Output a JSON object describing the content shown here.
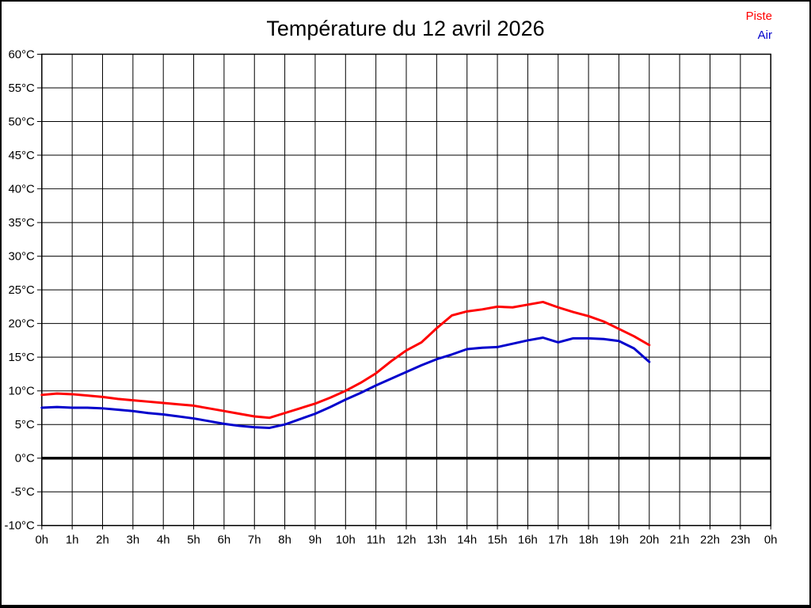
{
  "title": "Température du 12 avril 2026",
  "legend": {
    "items": [
      {
        "label": "Piste",
        "color": "#ff0000"
      },
      {
        "label": "Air",
        "color": "#0000cc"
      }
    ]
  },
  "colors": {
    "background": "#ffffff",
    "grid": "#000000",
    "axis": "#000000",
    "zero_line": "#000000",
    "piste_line": "#ff0000",
    "air_line": "#0000cc"
  },
  "chart_data": {
    "type": "line",
    "title": "Température du 12 avril 2026",
    "xlabel": "",
    "ylabel": "",
    "xlim": [
      0,
      24
    ],
    "ylim": [
      -10,
      60
    ],
    "grid": true,
    "legend_position": "top-right",
    "zero_line_bold": true,
    "x_tick_values": [
      0,
      1,
      2,
      3,
      4,
      5,
      6,
      7,
      8,
      9,
      10,
      11,
      12,
      13,
      14,
      15,
      16,
      17,
      18,
      19,
      20,
      21,
      22,
      23,
      24
    ],
    "x_tick_labels": [
      "0h",
      "1h",
      "2h",
      "3h",
      "4h",
      "5h",
      "6h",
      "7h",
      "8h",
      "9h",
      "10h",
      "11h",
      "12h",
      "13h",
      "14h",
      "15h",
      "16h",
      "17h",
      "18h",
      "19h",
      "20h",
      "21h",
      "22h",
      "23h",
      "0h"
    ],
    "y_tick_values": [
      60,
      55,
      50,
      45,
      40,
      35,
      30,
      25,
      20,
      15,
      10,
      5,
      0,
      -5,
      -10
    ],
    "y_tick_labels": [
      "60°C",
      "55°C",
      "50°C",
      "45°C",
      "40°C",
      "35°C",
      "30°C",
      "25°C",
      "20°C",
      "15°C",
      "10°C",
      "5°C",
      "0°C",
      "-5°C",
      "-10°C"
    ],
    "x": [
      0,
      0.5,
      1,
      1.5,
      2,
      2.5,
      3,
      3.5,
      4,
      4.5,
      5,
      5.5,
      6,
      6.5,
      7,
      7.5,
      8,
      8.5,
      9,
      9.5,
      10,
      10.5,
      11,
      11.5,
      12,
      12.5,
      13,
      13.5,
      14,
      14.5,
      15,
      15.5,
      16,
      16.5,
      17,
      17.5,
      18,
      18.5,
      19,
      19.5,
      20
    ],
    "series": [
      {
        "name": "Piste",
        "color": "#ff0000",
        "values": [
          9.4,
          9.6,
          9.5,
          9.3,
          9.1,
          8.8,
          8.6,
          8.4,
          8.2,
          8.0,
          7.8,
          7.4,
          7.0,
          6.6,
          6.2,
          6.0,
          6.7,
          7.4,
          8.1,
          9.0,
          10.0,
          11.2,
          12.6,
          14.4,
          16.0,
          17.2,
          19.3,
          21.2,
          21.8,
          22.1,
          22.5,
          22.4,
          22.8,
          23.2,
          22.4,
          21.7,
          21.1,
          20.3,
          19.2,
          18.1,
          16.8
        ]
      },
      {
        "name": "Air",
        "color": "#0000cc",
        "values": [
          7.5,
          7.6,
          7.5,
          7.5,
          7.4,
          7.2,
          7.0,
          6.7,
          6.5,
          6.2,
          5.9,
          5.5,
          5.1,
          4.8,
          4.6,
          4.5,
          5.0,
          5.8,
          6.6,
          7.6,
          8.7,
          9.7,
          10.8,
          11.8,
          12.8,
          13.8,
          14.7,
          15.4,
          16.2,
          16.4,
          16.5,
          17.0,
          17.5,
          17.9,
          17.2,
          17.8,
          17.8,
          17.7,
          17.4,
          16.3,
          14.3
        ]
      }
    ]
  }
}
